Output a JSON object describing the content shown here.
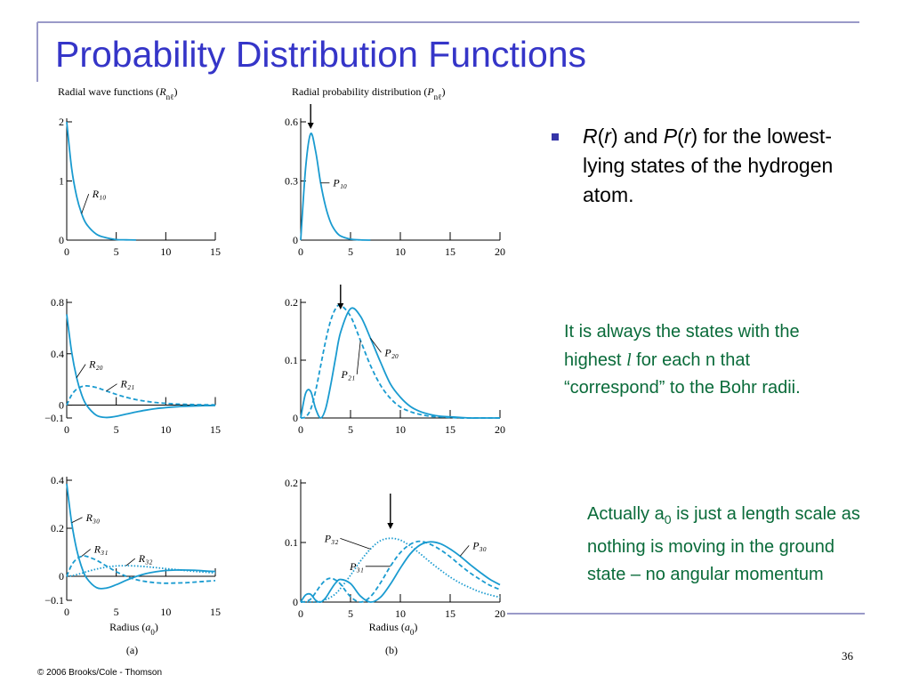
{
  "slide": {
    "title": "Probability Distribution Functions",
    "bullet": [
      {
        "text": "R",
        "style": "italic"
      },
      {
        "text": "("
      },
      {
        "text": "r",
        "style": "italic"
      },
      {
        "text": ") and "
      },
      {
        "text": "P",
        "style": "italic"
      },
      {
        "text": "("
      },
      {
        "text": "r",
        "style": "italic"
      },
      {
        "text": ") for the lowest-lying states of the hydrogen atom."
      }
    ],
    "note1": [
      {
        "text": "It is always the states with the highest "
      },
      {
        "text": "l",
        "style": "script"
      },
      {
        "text": " for each n that “correspond” to the Bohr radii."
      }
    ],
    "note2": [
      {
        "text": "Actually a"
      },
      {
        "text": "0",
        "style": "sub"
      },
      {
        "text": " is just a length scale as nothing is moving in the ground state – no angular momentum"
      }
    ],
    "footer": "© 2006 Brooks/Cole - Thomson",
    "page_number": 36
  },
  "chart_data": [
    {
      "type": "line",
      "title": [
        {
          "text": "Radial wave functions ("
        },
        {
          "text": "R",
          "style": "italic"
        },
        {
          "text": "nℓ",
          "style": "sub"
        },
        {
          "text": ")"
        }
      ],
      "x": [
        0,
        0.5,
        1,
        1.5,
        2,
        3,
        4,
        5,
        6,
        7,
        8,
        9,
        10,
        11,
        12,
        13,
        14,
        15
      ],
      "series": [
        {
          "name": "R₁₀",
          "color": "#1a9bd0",
          "dash": "solid",
          "values": [
            2,
            1.21,
            0.74,
            0.45,
            0.27,
            0.1,
            0.04,
            0.01,
            0.005,
            0.002,
            null,
            null,
            null,
            null,
            null,
            null,
            null,
            null
          ]
        }
      ],
      "xlim": [
        0,
        15
      ],
      "xticks": [
        0,
        5,
        10,
        15
      ],
      "ylim": [
        0,
        2
      ],
      "yticks": [
        0,
        1,
        2
      ]
    },
    {
      "type": "line",
      "title": [
        {
          "text": "Radial probability distribution ("
        },
        {
          "text": "P",
          "style": "italic"
        },
        {
          "text": "nℓ",
          "style": "sub"
        },
        {
          "text": ")"
        }
      ],
      "x": [
        0,
        0.5,
        1,
        1.5,
        2,
        2.5,
        3,
        3.5,
        4,
        5,
        6,
        7,
        8,
        9,
        10,
        11,
        12,
        13,
        14,
        15,
        16,
        17,
        18,
        19,
        20
      ],
      "series": [
        {
          "name": "P₁₀",
          "color": "#1a9bd0",
          "dash": "solid",
          "values": [
            0,
            0.37,
            0.54,
            0.45,
            0.29,
            0.17,
            0.09,
            0.045,
            0.021,
            0.005,
            0.001,
            0,
            null,
            null,
            null,
            null,
            null,
            null,
            null,
            null,
            null,
            null,
            null,
            null,
            null
          ]
        }
      ],
      "xlim": [
        0,
        20
      ],
      "xticks": [
        0,
        5,
        10,
        15,
        20
      ],
      "ylim": [
        0,
        0.6
      ],
      "yticks": [
        0,
        0.3,
        0.6
      ],
      "arrow_x": 1
    },
    {
      "type": "line",
      "x": [
        0,
        0.5,
        1,
        1.5,
        2,
        3,
        4,
        5,
        6,
        7,
        8,
        9,
        10,
        11,
        12,
        13,
        14,
        15
      ],
      "series": [
        {
          "name": "R₂₀",
          "color": "#1a9bd0",
          "dash": "solid",
          "values": [
            0.707,
            0.413,
            0.214,
            0.083,
            0,
            -0.079,
            -0.096,
            -0.087,
            -0.07,
            -0.053,
            -0.039,
            -0.027,
            -0.019,
            -0.013,
            -0.009,
            -0.006,
            -0.004,
            -0.003
          ]
        },
        {
          "name": "R₂₁",
          "color": "#1a9bd0",
          "dash": "dashed",
          "values": [
            0,
            0.08,
            0.124,
            0.144,
            0.15,
            0.137,
            0.11,
            0.084,
            0.061,
            0.043,
            0.03,
            0.02,
            0.014,
            0.009,
            0.006,
            0.004,
            0.003,
            0.002
          ]
        }
      ],
      "xlim": [
        0,
        15
      ],
      "xticks": [
        0,
        5,
        10,
        15
      ],
      "ylim": [
        -0.1,
        0.8
      ],
      "yticks": [
        {
          "value": -0.1,
          "label": "−0.1"
        },
        0,
        0.4,
        0.8
      ]
    },
    {
      "type": "line",
      "x": [
        0,
        0.5,
        1,
        1.5,
        2,
        2.5,
        3,
        3.5,
        4,
        5,
        6,
        7,
        8,
        9,
        10,
        11,
        12,
        13,
        14,
        15,
        16,
        17,
        18,
        19,
        20
      ],
      "series": [
        {
          "name": "P₂₀",
          "color": "#1a9bd0",
          "dash": "solid",
          "values": [
            0,
            0.043,
            0.046,
            0.016,
            0,
            0.016,
            0.056,
            0.104,
            0.148,
            0.189,
            0.176,
            0.138,
            0.097,
            0.059,
            0.036,
            0.02,
            0.011,
            0.006,
            0.003,
            0.002,
            0.001,
            0,
            0,
            0,
            0
          ]
        },
        {
          "name": "P₂₁",
          "color": "#1a9bd0",
          "dash": "dashed",
          "values": [
            0,
            0.002,
            0.015,
            0.047,
            0.09,
            0.133,
            0.168,
            0.189,
            0.195,
            0.176,
            0.134,
            0.091,
            0.057,
            0.034,
            0.019,
            0.011,
            0.006,
            0.003,
            0.002,
            0.001,
            0,
            0,
            0,
            0,
            0
          ]
        }
      ],
      "xlim": [
        0,
        20
      ],
      "xticks": [
        0,
        5,
        10,
        15,
        20
      ],
      "ylim": [
        0,
        0.2
      ],
      "yticks": [
        0,
        0.1,
        0.2
      ],
      "arrow_x": 4
    },
    {
      "type": "line",
      "x": [
        0,
        0.5,
        1,
        1.5,
        2,
        3,
        4,
        5,
        6,
        7,
        8,
        9,
        10,
        11,
        12,
        13,
        14,
        15
      ],
      "series": [
        {
          "name": "R₃₀",
          "color": "#1a9bd0",
          "dash": "solid",
          "values": [
            0.385,
            0.223,
            0.112,
            0.039,
            -0.007,
            -0.047,
            -0.049,
            -0.035,
            -0.017,
            -0.001,
            0.011,
            0.019,
            0.024,
            0.026,
            0.026,
            0.025,
            0.022,
            0.02
          ]
        },
        {
          "name": "R₃₁",
          "color": "#1a9bd0",
          "dash": "dashed",
          "values": [
            0,
            0.047,
            0.072,
            0.083,
            0.083,
            0.067,
            0.043,
            0.019,
            0,
            -0.014,
            -0.022,
            -0.027,
            -0.029,
            -0.028,
            -0.027,
            -0.024,
            -0.021,
            -0.018
          ]
        },
        {
          "name": "R₃₂",
          "color": "#1a9bd0",
          "dash": "dotted",
          "values": [
            0,
            0.002,
            0.007,
            0.012,
            0.019,
            0.03,
            0.038,
            0.043,
            0.044,
            0.043,
            0.04,
            0.036,
            0.032,
            0.028,
            0.024,
            0.02,
            0.017,
            0.014
          ]
        }
      ],
      "xlim": [
        0,
        15
      ],
      "xticks": [
        0,
        5,
        10,
        15
      ],
      "ylim": [
        -0.1,
        0.4
      ],
      "yticks": [
        {
          "value": -0.1,
          "label": "−0.1"
        },
        0,
        0.2,
        0.4
      ],
      "xlabel": [
        {
          "text": "Radius ("
        },
        {
          "text": "a",
          "style": "italic"
        },
        {
          "text": "0",
          "style": "sub"
        },
        {
          "text": ")"
        }
      ],
      "caption": "(a)"
    },
    {
      "type": "line",
      "x": [
        0,
        0.5,
        1,
        1.5,
        2,
        2.5,
        3,
        3.5,
        4,
        5,
        6,
        7,
        8,
        9,
        10,
        11,
        12,
        13,
        14,
        15,
        16,
        17,
        18,
        19,
        20
      ],
      "series": [
        {
          "name": "P₃₀",
          "color": "#1a9bd0",
          "dash": "solid",
          "values": [
            0,
            0.012,
            0.013,
            0.003,
            0,
            0.007,
            0.02,
            0.032,
            0.038,
            0.031,
            0.01,
            0,
            0.008,
            0.03,
            0.057,
            0.081,
            0.096,
            0.101,
            0.098,
            0.089,
            0.077,
            0.063,
            0.05,
            0.038,
            0.029
          ]
        },
        {
          "name": "P₃₁",
          "color": "#1a9bd0",
          "dash": "dashed",
          "values": [
            0,
            0.001,
            0.005,
            0.016,
            0.028,
            0.037,
            0.04,
            0.037,
            0.03,
            0.009,
            0,
            0.009,
            0.032,
            0.06,
            0.083,
            0.097,
            0.102,
            0.097,
            0.088,
            0.076,
            0.062,
            0.049,
            0.038,
            0.028,
            0.021
          ]
        },
        {
          "name": "P₃₂",
          "color": "#1a9bd0",
          "dash": "dotted",
          "values": [
            0,
            0,
            0,
            0,
            0.001,
            0.004,
            0.008,
            0.014,
            0.023,
            0.045,
            0.069,
            0.089,
            0.103,
            0.107,
            0.104,
            0.094,
            0.081,
            0.067,
            0.054,
            0.042,
            0.032,
            0.024,
            0.017,
            0.012,
            0.008
          ]
        }
      ],
      "xlim": [
        0,
        20
      ],
      "xticks": [
        0,
        5,
        10,
        15,
        20
      ],
      "ylim": [
        0,
        0.2
      ],
      "yticks": [
        0,
        0.1,
        0.2
      ],
      "arrow_x": 9,
      "xlabel": [
        {
          "text": "Radius ("
        },
        {
          "text": "a",
          "style": "italic"
        },
        {
          "text": "0",
          "style": "sub"
        },
        {
          "text": ")"
        }
      ],
      "caption": "(b)"
    }
  ]
}
